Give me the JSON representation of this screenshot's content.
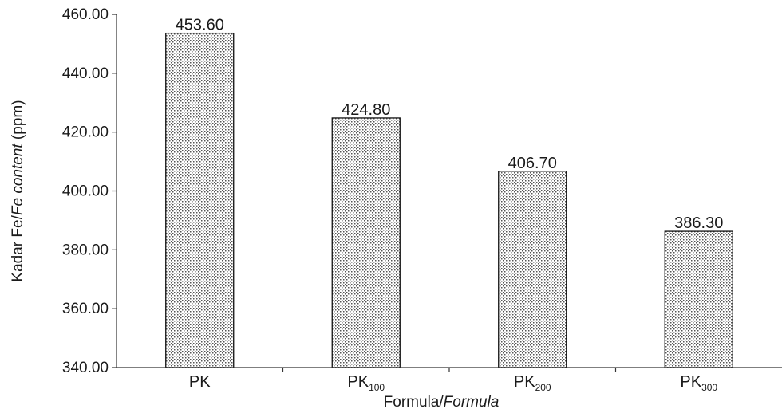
{
  "chart_data": {
    "type": "bar",
    "categories": [
      {
        "base": "PK",
        "sub": ""
      },
      {
        "base": "PK",
        "sub": "100"
      },
      {
        "base": "PK",
        "sub": "200"
      },
      {
        "base": "PK",
        "sub": "300"
      }
    ],
    "values": [
      453.6,
      424.8,
      406.7,
      386.3
    ],
    "value_labels": [
      "453.60",
      "424.80",
      "406.70",
      "386.30"
    ],
    "xlabel": {
      "normal": "Formula/",
      "italic": "Formula"
    },
    "ylabel": {
      "normal1": "Kadar Fe/",
      "italic": "Fe content",
      "normal2": " (ppm)"
    },
    "ylim": [
      340,
      460
    ],
    "yticks": [
      340,
      360,
      380,
      400,
      420,
      440,
      460
    ],
    "ytick_labels": [
      "340.00",
      "360.00",
      "380.00",
      "400.00",
      "420.00",
      "440.00",
      "460.00"
    ],
    "grid": false,
    "bar_fill": "dotted-grey"
  }
}
